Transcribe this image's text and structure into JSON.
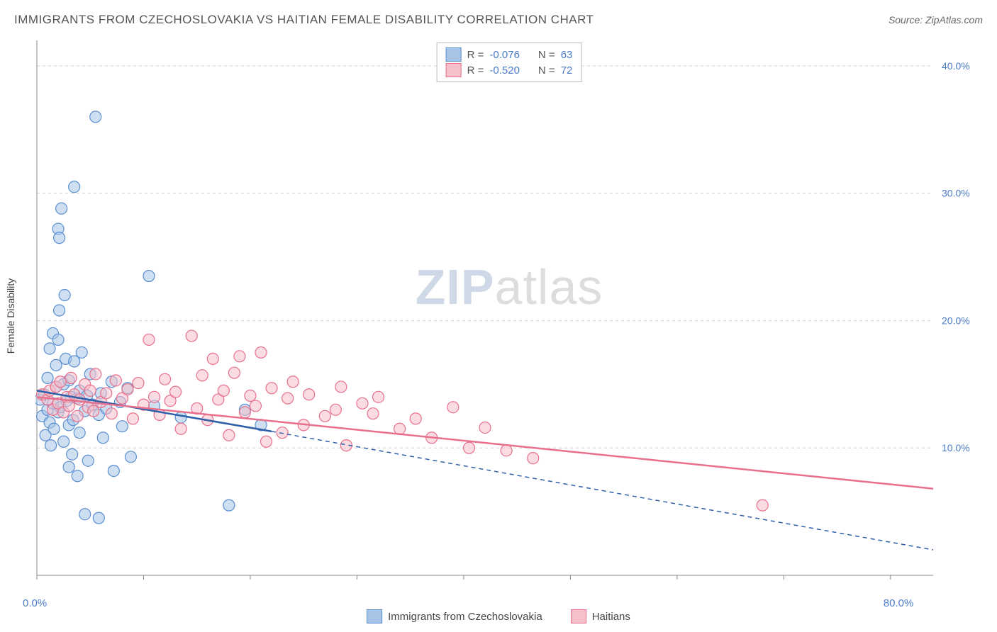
{
  "title": "IMMIGRANTS FROM CZECHOSLOVAKIA VS HAITIAN FEMALE DISABILITY CORRELATION CHART",
  "source": "Source: ZipAtlas.com",
  "y_axis_label": "Female Disability",
  "watermark_bold": "ZIP",
  "watermark_light": "atlas",
  "chart": {
    "type": "scatter",
    "background_color": "#ffffff",
    "grid_color": "#d0d0d0",
    "axis_color": "#888888",
    "tick_label_color": "#4a7bc8",
    "xlim": [
      0,
      84
    ],
    "ylim": [
      0,
      42
    ],
    "x_ticks": [
      0,
      10,
      20,
      30,
      40,
      50,
      60,
      70,
      80
    ],
    "x_tick_labels": {
      "0": "0.0%",
      "80": "80.0%"
    },
    "y_ticks": [
      10,
      20,
      30,
      40
    ],
    "y_tick_labels": {
      "10": "10.0%",
      "20": "20.0%",
      "30": "30.0%",
      "40": "40.0%"
    },
    "marker_radius": 8,
    "marker_opacity": 0.55,
    "marker_stroke_width": 1.2,
    "series": [
      {
        "name": "Immigrants from Czechoslovakia",
        "fill_color": "#a8c5e8",
        "stroke_color": "#5b8fd1",
        "R": "-0.076",
        "N": "63",
        "trend": {
          "x1": 0,
          "y1": 14.5,
          "x2": 22,
          "y2": 11.3,
          "solid_end_x": 22,
          "dash_end_x": 84,
          "dash_end_y": 2.0,
          "color": "#2e5fa8",
          "width": 2.5
        },
        "points": [
          [
            0.3,
            13.8
          ],
          [
            0.5,
            12.5
          ],
          [
            0.7,
            14.2
          ],
          [
            0.8,
            11.0
          ],
          [
            1.0,
            13.0
          ],
          [
            1.0,
            15.5
          ],
          [
            1.2,
            12.0
          ],
          [
            1.2,
            17.8
          ],
          [
            1.3,
            10.2
          ],
          [
            1.5,
            13.5
          ],
          [
            1.5,
            19.0
          ],
          [
            1.6,
            11.5
          ],
          [
            1.8,
            14.8
          ],
          [
            1.8,
            16.5
          ],
          [
            2.0,
            12.8
          ],
          [
            2.0,
            18.5
          ],
          [
            2.0,
            27.2
          ],
          [
            2.1,
            26.5
          ],
          [
            2.1,
            20.8
          ],
          [
            2.2,
            13.2
          ],
          [
            2.3,
            28.8
          ],
          [
            2.5,
            15.0
          ],
          [
            2.5,
            10.5
          ],
          [
            2.6,
            22.0
          ],
          [
            2.7,
            17.0
          ],
          [
            2.8,
            13.7
          ],
          [
            3.0,
            8.5
          ],
          [
            3.0,
            11.8
          ],
          [
            3.0,
            15.3
          ],
          [
            3.2,
            14.0
          ],
          [
            3.3,
            9.5
          ],
          [
            3.4,
            12.2
          ],
          [
            3.5,
            16.8
          ],
          [
            3.5,
            30.5
          ],
          [
            3.8,
            13.9
          ],
          [
            3.8,
            7.8
          ],
          [
            4.0,
            14.5
          ],
          [
            4.0,
            11.2
          ],
          [
            4.2,
            17.5
          ],
          [
            4.5,
            12.9
          ],
          [
            4.5,
            4.8
          ],
          [
            4.7,
            14.1
          ],
          [
            4.8,
            9.0
          ],
          [
            5.0,
            15.8
          ],
          [
            5.2,
            13.4
          ],
          [
            5.5,
            36.0
          ],
          [
            5.8,
            12.6
          ],
          [
            5.8,
            4.5
          ],
          [
            6.0,
            14.3
          ],
          [
            6.2,
            10.8
          ],
          [
            6.5,
            13.1
          ],
          [
            7.0,
            15.2
          ],
          [
            7.2,
            8.2
          ],
          [
            7.8,
            13.6
          ],
          [
            8.0,
            11.7
          ],
          [
            8.5,
            14.7
          ],
          [
            8.8,
            9.3
          ],
          [
            10.5,
            23.5
          ],
          [
            11.0,
            13.3
          ],
          [
            13.5,
            12.4
          ],
          [
            18.0,
            5.5
          ],
          [
            19.5,
            13.0
          ],
          [
            21.0,
            11.8
          ]
        ]
      },
      {
        "name": "Haitians",
        "fill_color": "#f5c0ca",
        "stroke_color": "#e8708c",
        "R": "-0.520",
        "N": "72",
        "trend": {
          "x1": 0,
          "y1": 14.0,
          "x2": 84,
          "y2": 6.8,
          "solid_end_x": 84,
          "dash_end_x": 84,
          "dash_end_y": 6.8,
          "color": "#e8708c",
          "width": 2.5
        },
        "points": [
          [
            0.5,
            14.2
          ],
          [
            1.0,
            13.8
          ],
          [
            1.2,
            14.5
          ],
          [
            1.5,
            13.0
          ],
          [
            1.8,
            14.8
          ],
          [
            2.0,
            13.5
          ],
          [
            2.2,
            15.2
          ],
          [
            2.5,
            12.8
          ],
          [
            2.8,
            14.0
          ],
          [
            3.0,
            13.3
          ],
          [
            3.2,
            15.5
          ],
          [
            3.5,
            14.2
          ],
          [
            3.8,
            12.5
          ],
          [
            4.0,
            13.8
          ],
          [
            4.5,
            15.0
          ],
          [
            4.8,
            13.2
          ],
          [
            5.0,
            14.5
          ],
          [
            5.3,
            12.9
          ],
          [
            5.5,
            15.8
          ],
          [
            6.0,
            13.6
          ],
          [
            6.5,
            14.3
          ],
          [
            7.0,
            12.7
          ],
          [
            7.4,
            15.3
          ],
          [
            8.0,
            13.9
          ],
          [
            8.5,
            14.6
          ],
          [
            9.0,
            12.3
          ],
          [
            9.5,
            15.1
          ],
          [
            10.0,
            13.4
          ],
          [
            10.5,
            18.5
          ],
          [
            11.0,
            14.0
          ],
          [
            11.5,
            12.6
          ],
          [
            12.0,
            15.4
          ],
          [
            12.5,
            13.7
          ],
          [
            13.0,
            14.4
          ],
          [
            13.5,
            11.5
          ],
          [
            14.5,
            18.8
          ],
          [
            15.0,
            13.1
          ],
          [
            15.5,
            15.7
          ],
          [
            16.0,
            12.2
          ],
          [
            16.5,
            17.0
          ],
          [
            17.0,
            13.8
          ],
          [
            17.5,
            14.5
          ],
          [
            18.0,
            11.0
          ],
          [
            18.5,
            15.9
          ],
          [
            19.0,
            17.2
          ],
          [
            19.5,
            12.8
          ],
          [
            20.0,
            14.1
          ],
          [
            20.5,
            13.3
          ],
          [
            21.0,
            17.5
          ],
          [
            21.5,
            10.5
          ],
          [
            22.0,
            14.7
          ],
          [
            23.0,
            11.2
          ],
          [
            23.5,
            13.9
          ],
          [
            24.0,
            15.2
          ],
          [
            25.0,
            11.8
          ],
          [
            25.5,
            14.2
          ],
          [
            27.0,
            12.5
          ],
          [
            28.0,
            13.0
          ],
          [
            28.5,
            14.8
          ],
          [
            29.0,
            10.2
          ],
          [
            30.5,
            13.5
          ],
          [
            31.5,
            12.7
          ],
          [
            32.0,
            14.0
          ],
          [
            34.0,
            11.5
          ],
          [
            35.5,
            12.3
          ],
          [
            37.0,
            10.8
          ],
          [
            39.0,
            13.2
          ],
          [
            40.5,
            10.0
          ],
          [
            42.0,
            11.6
          ],
          [
            44.0,
            9.8
          ],
          [
            46.5,
            9.2
          ],
          [
            68.0,
            5.5
          ]
        ]
      }
    ],
    "stats_legend": {
      "R_label": "R =",
      "N_label": "N ="
    },
    "bottom_legend_labels": [
      "Immigrants from Czechoslovakia",
      "Haitians"
    ]
  }
}
